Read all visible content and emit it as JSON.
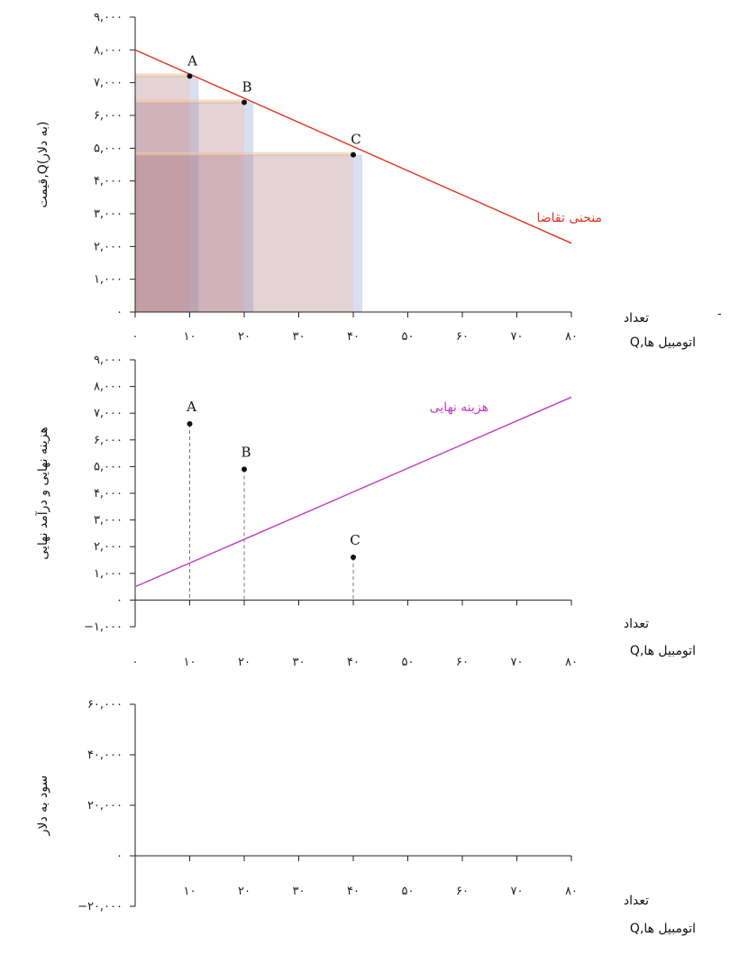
{
  "colors": {
    "demand": "#e0301e",
    "mc": "#c03cc0",
    "axis": "#222222",
    "rect_fill": "#a8747f",
    "rect_edge_orange": "#f0c6a0",
    "rect_edge_blue": "#b8c4e8"
  },
  "chart_data": [
    {
      "id": "top",
      "type": "line",
      "title": "",
      "ylabel": "قیمت‚Q(به دلار)",
      "xlabel_line1": "تعداد",
      "xlabel_line2": "Q‚اتومبیل ها",
      "xlim": [
        0,
        80
      ],
      "ylim": [
        0,
        9000
      ],
      "x_ticks": [
        0,
        10,
        20,
        30,
        40,
        50,
        60,
        70,
        80
      ],
      "x_tick_labels": [
        "۰",
        "۱۰",
        "۲۰",
        "۳۰",
        "۴۰",
        "۵۰",
        "۶۰",
        "۷۰",
        "۸۰"
      ],
      "y_ticks": [
        0,
        1000,
        2000,
        3000,
        4000,
        5000,
        6000,
        7000,
        8000,
        9000
      ],
      "y_tick_labels": [
        "۰",
        "۱,۰۰۰",
        "۲,۰۰۰",
        "۳,۰۰۰",
        "۴,۰۰۰",
        "۵,۰۰۰",
        "۶,۰۰۰",
        "۷,۰۰۰",
        "۸,۰۰۰",
        "۹,۰۰۰"
      ],
      "series": [
        {
          "name": "منحنی تقاضا",
          "x": [
            0,
            80
          ],
          "y": [
            8000,
            2100
          ]
        }
      ],
      "points": [
        {
          "label": "A",
          "x": 10,
          "y": 7200
        },
        {
          "label": "B",
          "x": 20,
          "y": 6400
        },
        {
          "label": "C",
          "x": 40,
          "y": 4800
        }
      ],
      "revenue_rects": [
        {
          "q": 10,
          "p": 7200
        },
        {
          "q": 20,
          "p": 6400
        },
        {
          "q": 40,
          "p": 4800
        }
      ],
      "grid": false
    },
    {
      "id": "middle",
      "type": "line",
      "title": "",
      "ylabel": "هزینه نهایی و درآمد نهایی",
      "xlabel_line1": "تعداد",
      "xlabel_line2": "Q‚اتومبیل ها",
      "xlim": [
        0,
        80
      ],
      "ylim": [
        -1000,
        9000
      ],
      "x_ticks": [
        0,
        10,
        20,
        30,
        40,
        50,
        60,
        70,
        80
      ],
      "x_tick_labels": [
        "۰",
        "۱۰",
        "۲۰",
        "۳۰",
        "۴۰",
        "۵۰",
        "۶۰",
        "۷۰",
        "۸۰"
      ],
      "y_ticks": [
        -1000,
        0,
        1000,
        2000,
        3000,
        4000,
        5000,
        6000,
        7000,
        8000,
        9000
      ],
      "y_tick_labels": [
        "−۱,۰۰۰",
        "۰",
        "۱,۰۰۰",
        "۲,۰۰۰",
        "۳,۰۰۰",
        "۴,۰۰۰",
        "۵,۰۰۰",
        "۶,۰۰۰",
        "۷,۰۰۰",
        "۸,۰۰۰",
        "۹,۰۰۰"
      ],
      "series": [
        {
          "name": "هزینه نهایی",
          "x": [
            0,
            80
          ],
          "y": [
            500,
            7600
          ]
        }
      ],
      "points": [
        {
          "label": "A",
          "x": 10,
          "y": 6600
        },
        {
          "label": "B",
          "x": 20,
          "y": 4900
        },
        {
          "label": "C",
          "x": 40,
          "y": 1600
        }
      ],
      "grid": false
    },
    {
      "id": "bottom",
      "type": "line",
      "title": "",
      "ylabel": "سود به دلار",
      "xlabel_line1": "تعداد",
      "xlabel_line2": "Q‚اتومبیل ها",
      "xlim": [
        0,
        80
      ],
      "ylim": [
        -20000,
        60000
      ],
      "x_ticks": [
        10,
        20,
        30,
        40,
        50,
        60,
        70,
        80
      ],
      "x_tick_labels": [
        "۱۰",
        "۲۰",
        "۳۰",
        "۴۰",
        "۵۰",
        "۶۰",
        "۷۰",
        "۸۰"
      ],
      "y_ticks": [
        -20000,
        0,
        20000,
        40000,
        60000
      ],
      "y_tick_labels": [
        "−۲۰,۰۰۰",
        "۰",
        "۲۰,۰۰۰",
        "۴۰,۰۰۰",
        "۶۰,۰۰۰"
      ],
      "series": [],
      "points": [],
      "grid": false
    }
  ],
  "stray_mark": "-"
}
